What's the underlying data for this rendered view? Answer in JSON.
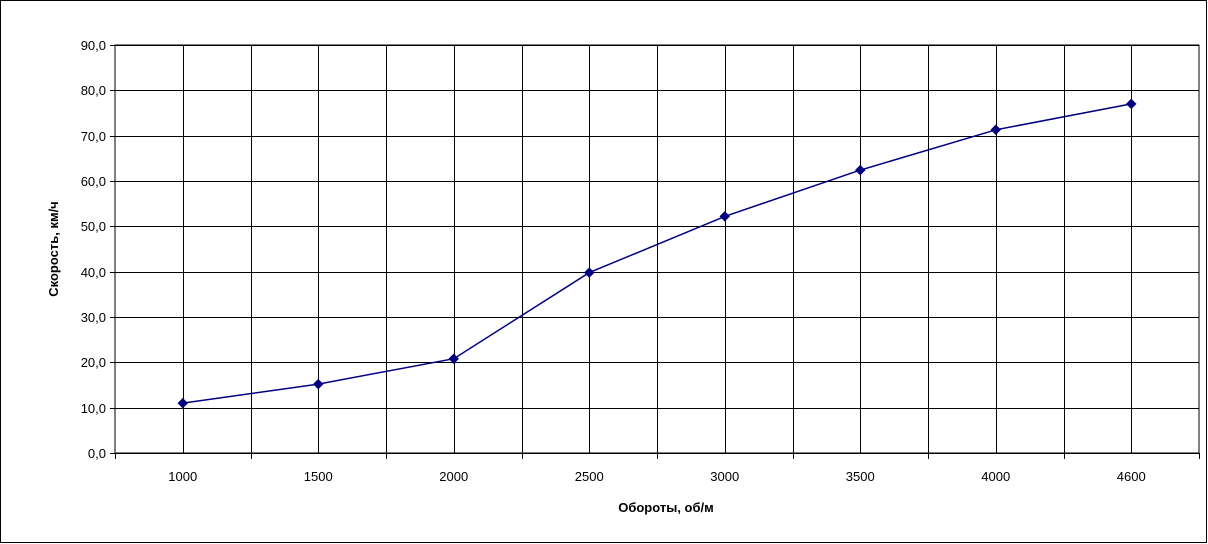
{
  "chart_data": {
    "type": "line",
    "categories": [
      "1000",
      "1500",
      "2000",
      "2500",
      "3000",
      "3500",
      "4000",
      "4600"
    ],
    "series": [
      {
        "values": [
          11.0,
          15.2,
          20.8,
          39.8,
          52.2,
          62.4,
          71.3,
          77.0
        ],
        "color": "#000080",
        "marker": "diamond"
      }
    ],
    "xlabel": "Обороты, об/м",
    "ylabel": "Скорость, км/ч",
    "ylim": [
      0,
      90
    ],
    "y_tick_step": 10,
    "y_tick_labels": [
      "0,0",
      "10,0",
      "20,0",
      "30,0",
      "40,0",
      "50,0",
      "60,0",
      "70,0",
      "80,0",
      "90,0"
    ],
    "grid": true,
    "legend": "none"
  }
}
